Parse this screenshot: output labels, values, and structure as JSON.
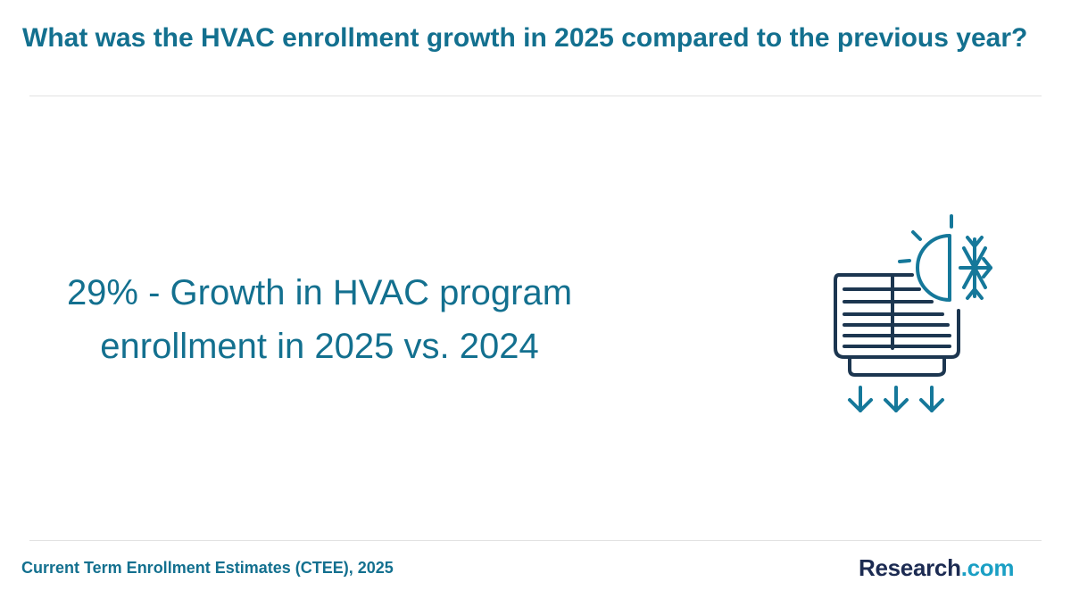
{
  "question": "What was the HVAC enrollment growth in 2025 compared to the previous year?",
  "stat": {
    "line1": "29% - Growth in HVAC program",
    "line2": "enrollment in 2025 vs. 2024"
  },
  "icon": "hvac-unit-heating-cooling-icon",
  "source": "Current Term Enrollment Estimates (CTEE), 2025",
  "logo": {
    "brand": "Research",
    "tld": ".com"
  },
  "colors": {
    "primary": "#13708f",
    "icon_dark": "#1c3650",
    "icon_accent": "#15789a",
    "logo_brand": "#1c2b52",
    "logo_tld": "#1a9fc4"
  }
}
